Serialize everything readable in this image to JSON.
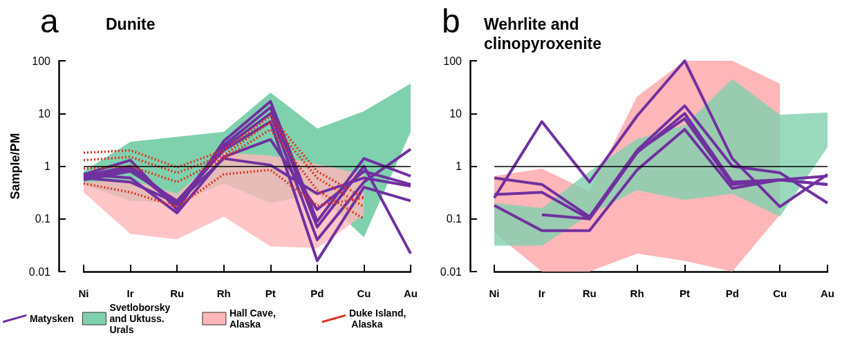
{
  "chart_data": [
    {
      "type": "line",
      "title": "Dunite",
      "ylabel": "Sample/PM",
      "annotations": [
        "a"
      ],
      "categories": [
        "Ni",
        "Ir",
        "Ru",
        "Rh",
        "Pt",
        "Pd",
        "Cu",
        "Au"
      ],
      "log": true,
      "ylim": [
        0.01,
        100
      ],
      "yticks": [
        0.01,
        0.1,
        1,
        10,
        100
      ],
      "ref_lines": [
        {
          "axis": "y",
          "value": 1,
          "color": "#000000"
        }
      ],
      "legend": "bottom",
      "series": [
        {
          "name": "Matysken",
          "color": "#7030a0",
          "values": [
            0.7,
            1.3,
            0.15,
            3,
            17,
            0.09,
            1.4,
            0.65
          ]
        },
        {
          "color": "#7030a0",
          "values": [
            0.65,
            1.0,
            0.2,
            2.5,
            13,
            0.07,
            1.0,
            0.022
          ]
        },
        {
          "color": "#7030a0",
          "values": [
            0.6,
            0.9,
            0.18,
            2.2,
            10,
            0.04,
            0.5,
            2.1
          ]
        },
        {
          "color": "#7030a0",
          "values": [
            0.55,
            0.8,
            0.22,
            2,
            7,
            0.016,
            0.4,
            0.22
          ]
        },
        {
          "color": "#7030a0",
          "values": [
            0.7,
            0.6,
            0.13,
            1.5,
            3.2,
            0.15,
            0.8,
            0.45
          ]
        },
        {
          "color": "#7030a0",
          "values": [
            0.6,
            0.5,
            0.2,
            1.4,
            1.05,
            0.3,
            0.6,
            0.42
          ]
        },
        {
          "name": "Svetloborsky and Uktuss. Urals",
          "type": "area",
          "color": "#7fd1ae",
          "values": [
            null,
            null,
            null,
            null,
            null,
            null,
            null,
            null
          ],
          "lower": [
            0.45,
            0.22,
            0.2,
            0.47,
            0.2,
            0.3,
            0.045,
            4.5
          ],
          "upper": [
            0.8,
            2.9,
            3.6,
            4.5,
            25,
            5.2,
            11,
            37
          ]
        },
        {
          "name": "Hall Cave, Alaska",
          "type": "area",
          "color": "#ffb6b9",
          "values": [
            null,
            null,
            null,
            null,
            null,
            null,
            null,
            null
          ],
          "lower": [
            0.32,
            0.052,
            0.041,
            0.11,
            0.03,
            0.028,
            0.12,
            null
          ],
          "upper": [
            0.5,
            0.55,
            0.3,
            1.8,
            1.6,
            1.1,
            0.7,
            null
          ]
        },
        {
          "name": "Duke Island, Alaska",
          "color": "#e03020",
          "line_style": "dotted",
          "values": [
            1.8,
            2.0,
            0.95,
            2,
            9,
            0.8,
            0.25,
            null
          ]
        },
        {
          "color": "#e03020",
          "line_style": "dotted",
          "values": [
            1.3,
            1.5,
            0.75,
            1.6,
            7,
            0.6,
            0.17,
            null
          ]
        },
        {
          "color": "#e03020",
          "line_style": "dotted",
          "values": [
            0.9,
            1.0,
            0.5,
            1.4,
            5,
            0.35,
            0.1,
            null
          ]
        },
        {
          "color": "#e03020",
          "line_style": "dotted",
          "values": [
            0.47,
            0.32,
            0.17,
            0.7,
            0.85,
            0.18,
            0.25,
            null
          ]
        }
      ]
    },
    {
      "type": "line",
      "title": "Wehrlite and clinopyroxenite",
      "annotations": [
        "b"
      ],
      "categories": [
        "Ni",
        "Ir",
        "Ru",
        "Rh",
        "Pt",
        "Pd",
        "Cu",
        "Au"
      ],
      "log": true,
      "ylim": [
        0.01,
        100
      ],
      "yticks": [
        0.01,
        0.1,
        1,
        10,
        100
      ],
      "ref_lines": [
        {
          "axis": "y",
          "value": 1,
          "color": "#000000"
        }
      ],
      "series": [
        {
          "color": "#7030a0",
          "values": [
            0.25,
            7,
            0.5,
            9,
            100,
            1.4,
            0.17,
            0.7
          ]
        },
        {
          "color": "#7030a0",
          "values": [
            0.6,
            0.45,
            0.11,
            2,
            14,
            1.0,
            0.75,
            0.2
          ]
        },
        {
          "color": "#7030a0",
          "values": [
            0.29,
            0.32,
            0.1,
            1.8,
            10,
            0.5,
            0.55,
            0.45
          ]
        },
        {
          "color": "#7030a0",
          "values": [
            0.18,
            0.06,
            0.06,
            0.85,
            5,
            0.38,
            0.55,
            0.65
          ]
        },
        {
          "color": "#7030a0",
          "values": [
            null,
            0.12,
            0.1,
            1.9,
            8,
            0.45,
            0.55,
            0.45
          ]
        },
        {
          "type": "area",
          "color": "#ffb6b9",
          "values": [
            null,
            null,
            null,
            null,
            null,
            null,
            null,
            null
          ],
          "lower": [
            0.055,
            0.01,
            0.01,
            0.022,
            0.016,
            0.01,
            0.12,
            null
          ],
          "upper": [
            0.65,
            0.9,
            0.33,
            21,
            100,
            100,
            37,
            null
          ]
        },
        {
          "type": "area",
          "color": "#7fd1ae",
          "values": [
            null,
            null,
            null,
            null,
            null,
            null,
            null,
            null
          ],
          "lower": [
            0.031,
            0.031,
            0.12,
            0.35,
            0.23,
            0.3,
            0.11,
            2.3
          ],
          "upper": [
            0.2,
            0.16,
            0.8,
            3.3,
            6,
            45,
            9.5,
            10.5
          ]
        }
      ]
    }
  ]
}
